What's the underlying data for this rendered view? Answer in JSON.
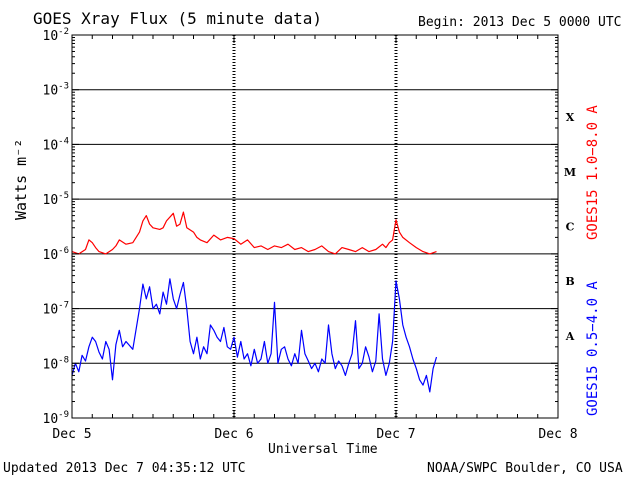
{
  "title": "GOES Xray Flux (5 minute data)",
  "begin": "Begin:  2013 Dec 5 0000 UTC",
  "updated": "Updated 2013 Dec  7 04:35:12 UTC",
  "credit": "NOAA/SWPC Boulder, CO USA",
  "chart_data": {
    "type": "line",
    "title": "GOES Xray Flux (5 minute data)",
    "xlabel": "Universal Time",
    "ylabel": "Watts m⁻²",
    "yscale": "log",
    "ylim": [
      1e-09,
      0.01
    ],
    "xlim": [
      0,
      72
    ],
    "x_unit": "hours since 2013 Dec 5 0000 UTC",
    "x_ticks": [
      {
        "x": 0,
        "label": "Dec 5"
      },
      {
        "x": 24,
        "label": "Dec 6"
      },
      {
        "x": 48,
        "label": "Dec 7"
      },
      {
        "x": 72,
        "label": "Dec 8"
      }
    ],
    "y_ticks": [
      {
        "exp": -9,
        "label": "10",
        "sup": "-9"
      },
      {
        "exp": -8,
        "label": "10",
        "sup": "-8"
      },
      {
        "exp": -7,
        "label": "10",
        "sup": "-7"
      },
      {
        "exp": -6,
        "label": "10",
        "sup": "-6"
      },
      {
        "exp": -5,
        "label": "10",
        "sup": "-5"
      },
      {
        "exp": -4,
        "label": "10",
        "sup": "-4"
      },
      {
        "exp": -3,
        "label": "10",
        "sup": "-3"
      },
      {
        "exp": -2,
        "label": "10",
        "sup": "-2"
      }
    ],
    "flare_classes": [
      {
        "label": "A",
        "value": 3.16e-08
      },
      {
        "label": "B",
        "value": 3.16e-07
      },
      {
        "label": "C",
        "value": 3.16e-06
      },
      {
        "label": "M",
        "value": 3.16e-05
      },
      {
        "label": "X",
        "value": 0.000316
      }
    ],
    "grid": true,
    "legend": "right side, vertical",
    "series": [
      {
        "name": "GOES15 1.0−8.0 A",
        "color": "#ff0000",
        "x": [
          0,
          1,
          2,
          2.5,
          3,
          3.5,
          4,
          5,
          6,
          6.5,
          7,
          8,
          9,
          10,
          10.5,
          11,
          11.5,
          12,
          13,
          13.5,
          14,
          15,
          15.5,
          16,
          16.5,
          17,
          18,
          18.5,
          19,
          20,
          21,
          22,
          23,
          24,
          25,
          26,
          27,
          28,
          29,
          30,
          31,
          32,
          33,
          34,
          35,
          36,
          37,
          38,
          39,
          40,
          41,
          42,
          43,
          44,
          45,
          46,
          46.5,
          47,
          47.5,
          48,
          48.5,
          49,
          50,
          51,
          52,
          53,
          54
        ],
        "values": [
          1.1e-06,
          1e-06,
          1.2e-06,
          1.8e-06,
          1.6e-06,
          1.3e-06,
          1.1e-06,
          1e-06,
          1.2e-06,
          1.4e-06,
          1.8e-06,
          1.5e-06,
          1.6e-06,
          2.5e-06,
          4e-06,
          5e-06,
          3.5e-06,
          3e-06,
          2.8e-06,
          3e-06,
          4e-06,
          5.5e-06,
          3.2e-06,
          3.5e-06,
          5.8e-06,
          3e-06,
          2.5e-06,
          2e-06,
          1.8e-06,
          1.6e-06,
          2.2e-06,
          1.8e-06,
          2e-06,
          1.9e-06,
          1.5e-06,
          1.8e-06,
          1.3e-06,
          1.4e-06,
          1.2e-06,
          1.4e-06,
          1.3e-06,
          1.5e-06,
          1.2e-06,
          1.3e-06,
          1.1e-06,
          1.2e-06,
          1.4e-06,
          1.1e-06,
          1e-06,
          1.3e-06,
          1.2e-06,
          1.1e-06,
          1.3e-06,
          1.1e-06,
          1.2e-06,
          1.5e-06,
          1.3e-06,
          1.6e-06,
          1.8e-06,
          4.2e-06,
          2.5e-06,
          2e-06,
          1.6e-06,
          1.3e-06,
          1.1e-06,
          1e-06,
          1.1e-06
        ]
      },
      {
        "name": "GOES15 0.5−4.0 A",
        "color": "#0000ff",
        "x": [
          0,
          0.5,
          1,
          1.5,
          2,
          2.5,
          3,
          3.5,
          4,
          4.5,
          5,
          5.5,
          6,
          6.5,
          7,
          7.5,
          8,
          9,
          10,
          10.5,
          11,
          11.5,
          12,
          12.5,
          13,
          13.5,
          14,
          14.5,
          15,
          15.5,
          16,
          16.5,
          17,
          17.5,
          18,
          18.5,
          19,
          19.5,
          20,
          20.5,
          21,
          21.5,
          22,
          22.5,
          23,
          23.5,
          24,
          24.5,
          25,
          25.5,
          26,
          26.5,
          27,
          27.5,
          28,
          28.5,
          29,
          29.5,
          30,
          30.5,
          31,
          31.5,
          32,
          32.5,
          33,
          33.5,
          34,
          34.5,
          35,
          35.5,
          36,
          36.5,
          37,
          37.5,
          38,
          38.5,
          39,
          39.5,
          40,
          40.5,
          41,
          41.5,
          42,
          42.5,
          43,
          43.5,
          44,
          44.5,
          45,
          45.5,
          46,
          46.5,
          47,
          47.5,
          48,
          48.5,
          49,
          49.5,
          50,
          50.5,
          51,
          51.5,
          52,
          52.5,
          53,
          53.5,
          54
        ],
        "values": [
          6e-09,
          1e-08,
          7e-09,
          1.4e-08,
          1.1e-08,
          2e-08,
          3e-08,
          2.5e-08,
          1.6e-08,
          1.2e-08,
          2.5e-08,
          1.8e-08,
          5e-09,
          2.2e-08,
          4e-08,
          2e-08,
          2.5e-08,
          1.8e-08,
          1e-07,
          2.8e-07,
          1.5e-07,
          2.5e-07,
          1e-07,
          1.2e-07,
          8e-08,
          2e-07,
          1.2e-07,
          3.5e-07,
          1.5e-07,
          1e-07,
          1.8e-07,
          3e-07,
          1e-07,
          2.5e-08,
          1.5e-08,
          3e-08,
          1.2e-08,
          2e-08,
          1.5e-08,
          5e-08,
          4e-08,
          3e-08,
          2.5e-08,
          4.5e-08,
          2e-08,
          1.8e-08,
          3e-08,
          1.3e-08,
          2.5e-08,
          1.2e-08,
          1.5e-08,
          9e-09,
          1.8e-08,
          1e-08,
          1.2e-08,
          2.5e-08,
          1e-08,
          1.5e-08,
          1.3e-07,
          1e-08,
          1.8e-08,
          2e-08,
          1.2e-08,
          9e-09,
          1.5e-08,
          1e-08,
          4e-08,
          1.5e-08,
          1.1e-08,
          8e-09,
          1e-08,
          7e-09,
          1.2e-08,
          1e-08,
          5e-08,
          1.5e-08,
          8e-09,
          1.1e-08,
          9e-09,
          6e-09,
          1e-08,
          1.5e-08,
          6e-08,
          8e-09,
          1e-08,
          2e-08,
          1.3e-08,
          7e-09,
          1.1e-08,
          8e-08,
          1.2e-08,
          6e-09,
          1e-08,
          2.5e-08,
          3.2e-07,
          1.5e-07,
          5e-08,
          3e-08,
          2e-08,
          1.2e-08,
          8e-09,
          5e-09,
          4e-09,
          6e-09,
          3e-09,
          8e-09,
          1.3e-08
        ]
      }
    ]
  }
}
